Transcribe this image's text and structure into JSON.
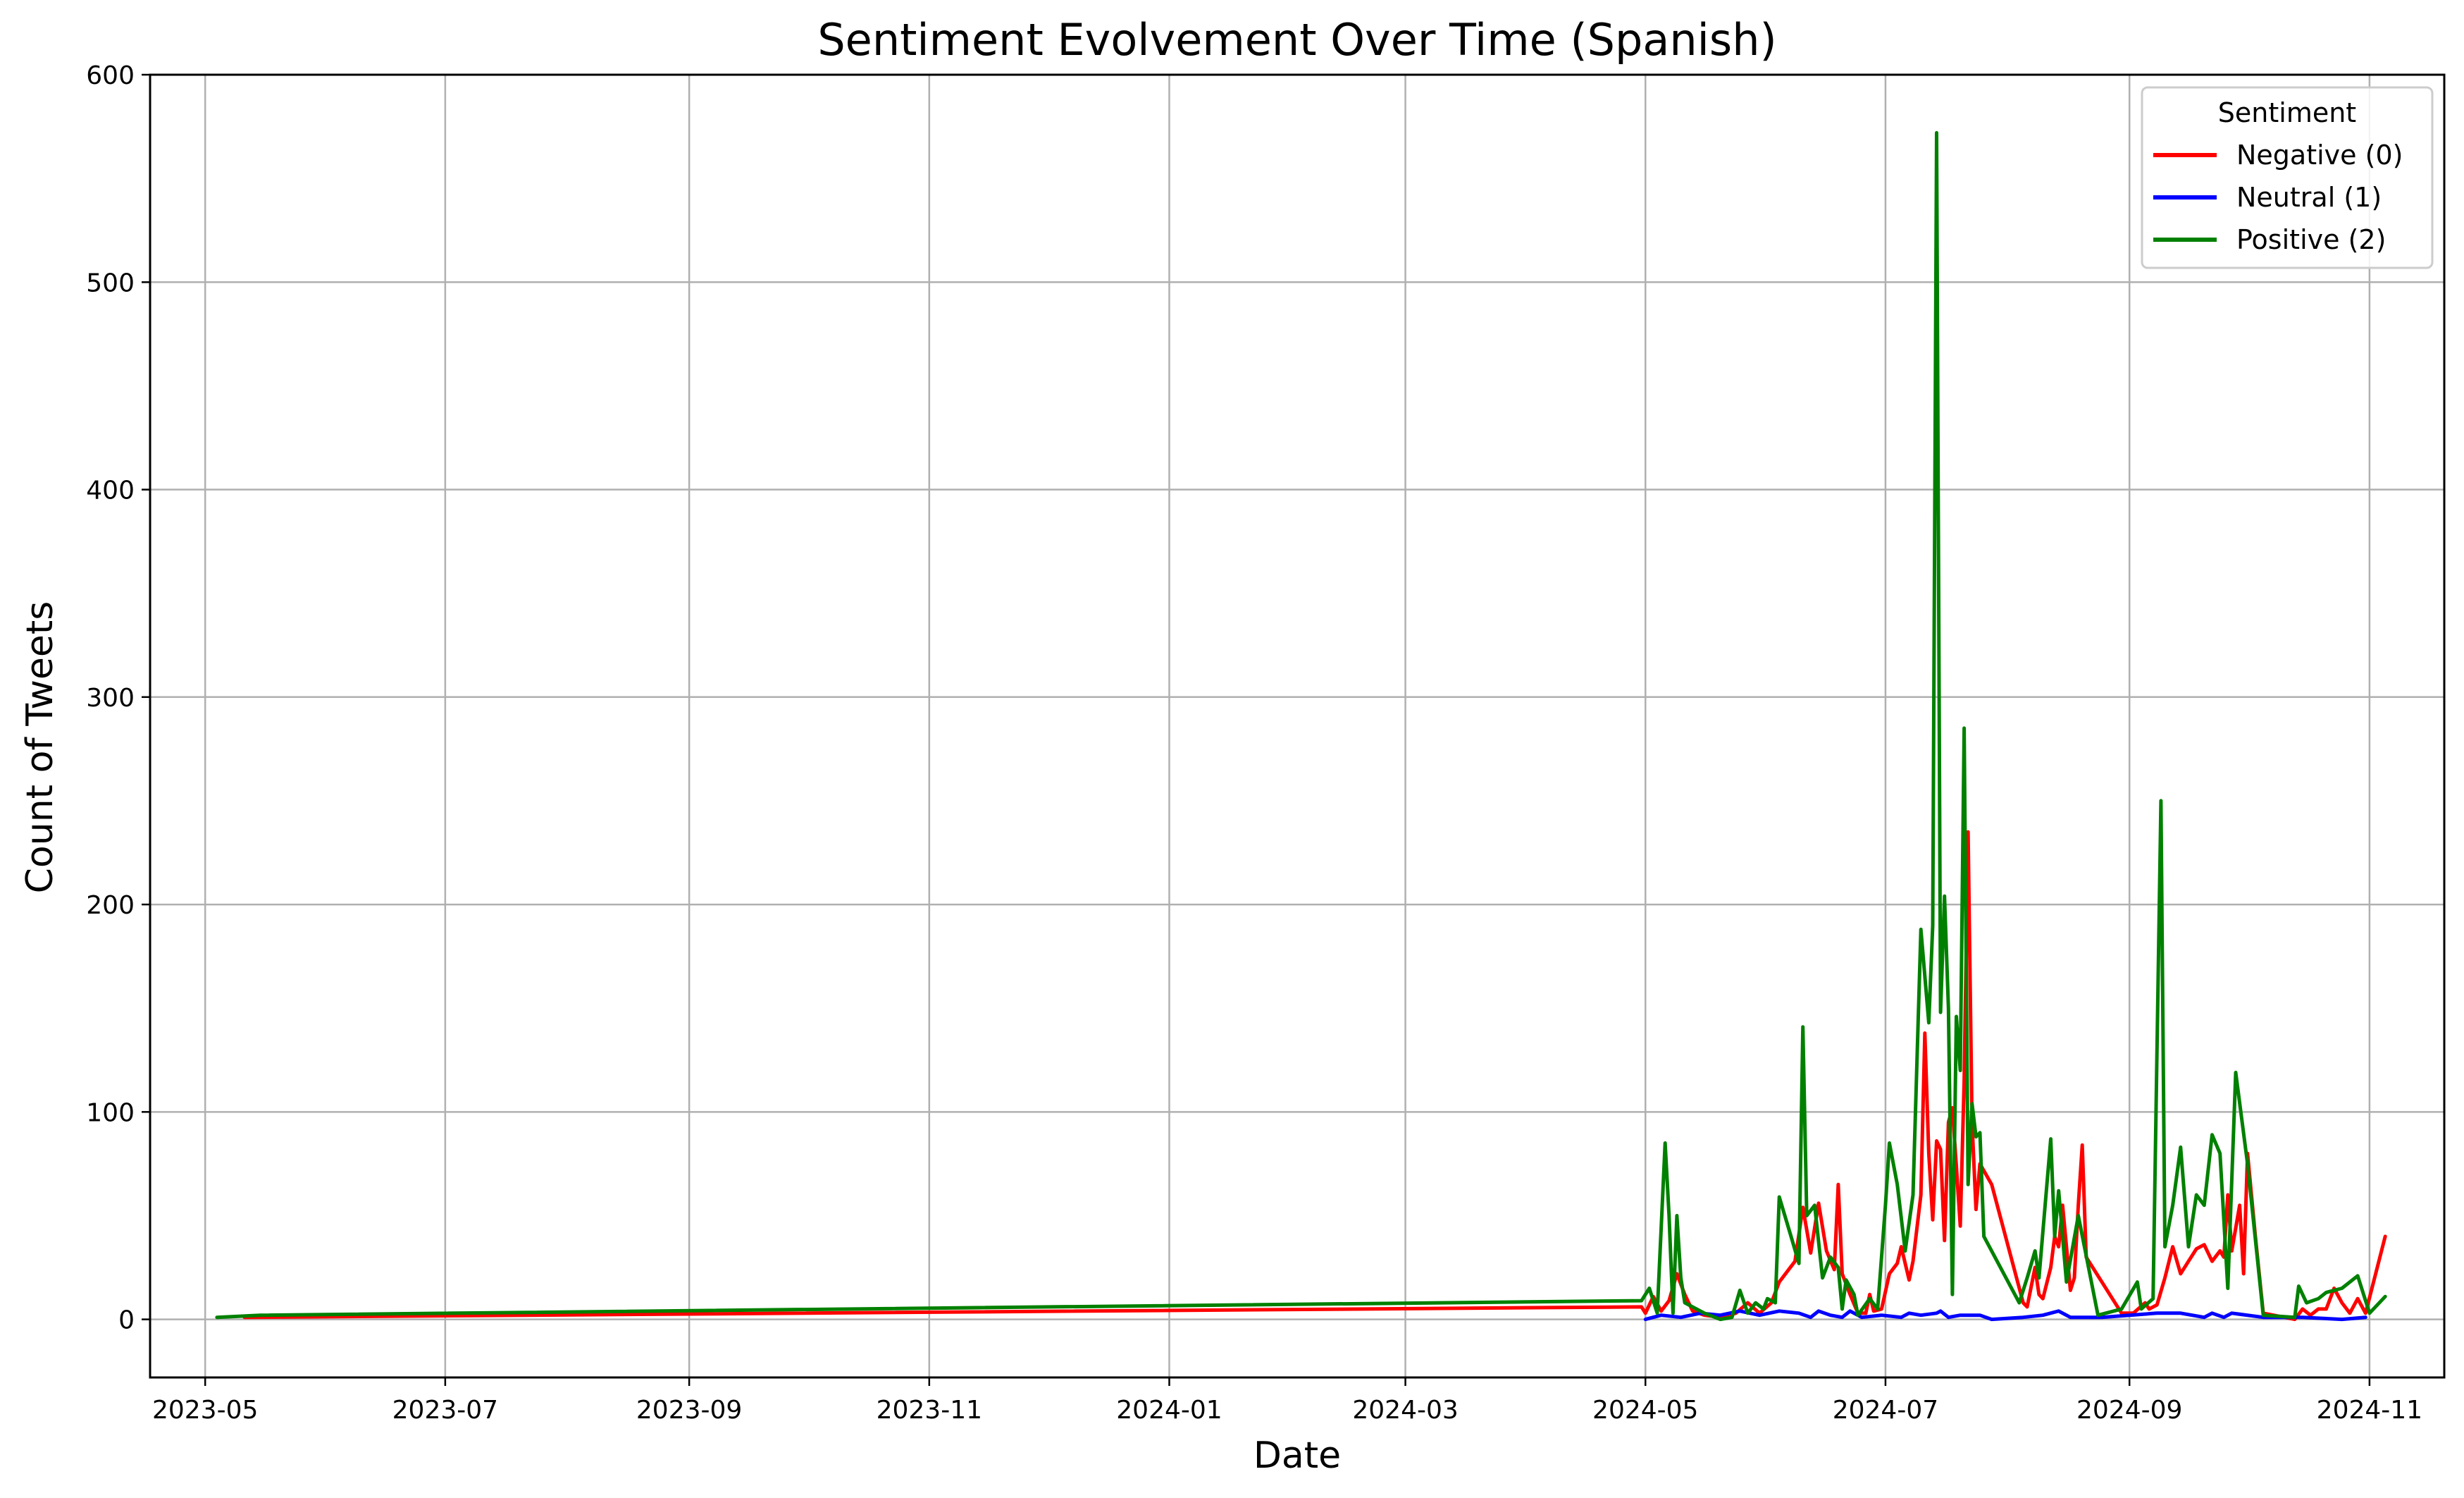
{
  "chart_data": {
    "type": "line",
    "title": "Sentiment Evolvement Over Time (Spanish)",
    "xlabel": "Date",
    "ylabel": "Count of Tweets",
    "xlim": [
      "2023-04-17",
      "2024-11-20"
    ],
    "ylim": [
      -28,
      600
    ],
    "grid": true,
    "legend": {
      "title": "Sentiment",
      "placement": "top-right"
    },
    "x_ticks": [
      "2023-05",
      "2023-07",
      "2023-09",
      "2023-11",
      "2024-01",
      "2024-03",
      "2024-05",
      "2024-07",
      "2024-09",
      "2024-11"
    ],
    "x_tick_dates": [
      "2023-05-01",
      "2023-07-01",
      "2023-09-01",
      "2023-11-01",
      "2024-01-01",
      "2024-03-01",
      "2024-05-01",
      "2024-07-01",
      "2024-09-01",
      "2024-11-01"
    ],
    "y_ticks": [
      0,
      100,
      200,
      300,
      400,
      500,
      600
    ],
    "series": [
      {
        "name": "Negative (0)",
        "color": "#ff0000",
        "points": [
          [
            "2023-05-11",
            1
          ],
          [
            "2024-04-30",
            6
          ],
          [
            "2024-05-01",
            3
          ],
          [
            "2024-05-03",
            11
          ],
          [
            "2024-05-05",
            4
          ],
          [
            "2024-05-07",
            9
          ],
          [
            "2024-05-09",
            22
          ],
          [
            "2024-05-11",
            12
          ],
          [
            "2024-05-13",
            4
          ],
          [
            "2024-05-16",
            2
          ],
          [
            "2024-05-20",
            1
          ],
          [
            "2024-05-24",
            3
          ],
          [
            "2024-05-27",
            8
          ],
          [
            "2024-05-30",
            3
          ],
          [
            "2024-06-02",
            8
          ],
          [
            "2024-06-04",
            18
          ],
          [
            "2024-06-08",
            28
          ],
          [
            "2024-06-10",
            54
          ],
          [
            "2024-06-12",
            32
          ],
          [
            "2024-06-14",
            56
          ],
          [
            "2024-06-16",
            33
          ],
          [
            "2024-06-18",
            24
          ],
          [
            "2024-06-19",
            65
          ],
          [
            "2024-06-20",
            22
          ],
          [
            "2024-06-22",
            12
          ],
          [
            "2024-06-24",
            3
          ],
          [
            "2024-06-26",
            3
          ],
          [
            "2024-06-27",
            12
          ],
          [
            "2024-06-28",
            4
          ],
          [
            "2024-06-30",
            5
          ],
          [
            "2024-07-02",
            22
          ],
          [
            "2024-07-04",
            27
          ],
          [
            "2024-07-05",
            35
          ],
          [
            "2024-07-07",
            19
          ],
          [
            "2024-07-08",
            28
          ],
          [
            "2024-07-10",
            60
          ],
          [
            "2024-07-11",
            138
          ],
          [
            "2024-07-12",
            80
          ],
          [
            "2024-07-13",
            48
          ],
          [
            "2024-07-14",
            86
          ],
          [
            "2024-07-15",
            82
          ],
          [
            "2024-07-16",
            38
          ],
          [
            "2024-07-17",
            95
          ],
          [
            "2024-07-18",
            102
          ],
          [
            "2024-07-19",
            74
          ],
          [
            "2024-07-20",
            45
          ],
          [
            "2024-07-21",
            115
          ],
          [
            "2024-07-22",
            235
          ],
          [
            "2024-07-23",
            95
          ],
          [
            "2024-07-24",
            53
          ],
          [
            "2024-07-25",
            75
          ],
          [
            "2024-07-28",
            65
          ],
          [
            "2024-08-05",
            8
          ],
          [
            "2024-08-06",
            6
          ],
          [
            "2024-08-08",
            25
          ],
          [
            "2024-08-09",
            12
          ],
          [
            "2024-08-10",
            10
          ],
          [
            "2024-08-12",
            25
          ],
          [
            "2024-08-13",
            40
          ],
          [
            "2024-08-14",
            35
          ],
          [
            "2024-08-15",
            55
          ],
          [
            "2024-08-16",
            35
          ],
          [
            "2024-08-17",
            14
          ],
          [
            "2024-08-18",
            20
          ],
          [
            "2024-08-19",
            55
          ],
          [
            "2024-08-20",
            84
          ],
          [
            "2024-08-21",
            30
          ],
          [
            "2024-08-30",
            3
          ],
          [
            "2024-09-02",
            3
          ],
          [
            "2024-09-05",
            8
          ],
          [
            "2024-09-06",
            5
          ],
          [
            "2024-09-08",
            7
          ],
          [
            "2024-09-10",
            20
          ],
          [
            "2024-09-12",
            35
          ],
          [
            "2024-09-14",
            22
          ],
          [
            "2024-09-16",
            28
          ],
          [
            "2024-09-18",
            34
          ],
          [
            "2024-09-20",
            36
          ],
          [
            "2024-09-22",
            28
          ],
          [
            "2024-09-24",
            33
          ],
          [
            "2024-09-25",
            30
          ],
          [
            "2024-09-26",
            60
          ],
          [
            "2024-09-27",
            33
          ],
          [
            "2024-09-29",
            55
          ],
          [
            "2024-09-30",
            22
          ],
          [
            "2024-10-01",
            80
          ],
          [
            "2024-10-03",
            40
          ],
          [
            "2024-10-05",
            3
          ],
          [
            "2024-10-13",
            0
          ],
          [
            "2024-10-15",
            5
          ],
          [
            "2024-10-17",
            2
          ],
          [
            "2024-10-19",
            5
          ],
          [
            "2024-10-21",
            5
          ],
          [
            "2024-10-23",
            15
          ],
          [
            "2024-10-25",
            8
          ],
          [
            "2024-10-27",
            3
          ],
          [
            "2024-10-29",
            10
          ],
          [
            "2024-10-31",
            3
          ],
          [
            "2024-11-05",
            40
          ]
        ]
      },
      {
        "name": "Neutral (1)",
        "color": "#0000ff",
        "points": [
          [
            "2024-05-01",
            0
          ],
          [
            "2024-05-05",
            2
          ],
          [
            "2024-05-10",
            1
          ],
          [
            "2024-05-15",
            3
          ],
          [
            "2024-05-20",
            2
          ],
          [
            "2024-05-25",
            4
          ],
          [
            "2024-05-30",
            2
          ],
          [
            "2024-06-04",
            4
          ],
          [
            "2024-06-09",
            3
          ],
          [
            "2024-06-12",
            1
          ],
          [
            "2024-06-14",
            4
          ],
          [
            "2024-06-17",
            2
          ],
          [
            "2024-06-20",
            1
          ],
          [
            "2024-06-22",
            4
          ],
          [
            "2024-06-25",
            1
          ],
          [
            "2024-06-30",
            2
          ],
          [
            "2024-07-05",
            1
          ],
          [
            "2024-07-07",
            3
          ],
          [
            "2024-07-10",
            2
          ],
          [
            "2024-07-14",
            3
          ],
          [
            "2024-07-15",
            4
          ],
          [
            "2024-07-17",
            1
          ],
          [
            "2024-07-20",
            2
          ],
          [
            "2024-07-25",
            2
          ],
          [
            "2024-07-28",
            0
          ],
          [
            "2024-08-05",
            1
          ],
          [
            "2024-08-10",
            2
          ],
          [
            "2024-08-14",
            4
          ],
          [
            "2024-08-17",
            1
          ],
          [
            "2024-08-25",
            1
          ],
          [
            "2024-09-01",
            2
          ],
          [
            "2024-09-08",
            3
          ],
          [
            "2024-09-14",
            3
          ],
          [
            "2024-09-20",
            1
          ],
          [
            "2024-09-22",
            3
          ],
          [
            "2024-09-25",
            1
          ],
          [
            "2024-09-27",
            3
          ],
          [
            "2024-10-05",
            1
          ],
          [
            "2024-10-15",
            1
          ],
          [
            "2024-10-25",
            0
          ],
          [
            "2024-10-31",
            1
          ]
        ]
      },
      {
        "name": "Positive (2)",
        "color": "#008000",
        "points": [
          [
            "2023-05-04",
            1
          ],
          [
            "2023-05-15",
            2
          ],
          [
            "2024-04-30",
            9
          ],
          [
            "2024-05-02",
            15
          ],
          [
            "2024-05-04",
            3
          ],
          [
            "2024-05-06",
            85
          ],
          [
            "2024-05-07",
            50
          ],
          [
            "2024-05-08",
            3
          ],
          [
            "2024-05-09",
            50
          ],
          [
            "2024-05-10",
            20
          ],
          [
            "2024-05-11",
            8
          ],
          [
            "2024-05-16",
            3
          ],
          [
            "2024-05-20",
            0
          ],
          [
            "2024-05-23",
            1
          ],
          [
            "2024-05-25",
            14
          ],
          [
            "2024-05-27",
            3
          ],
          [
            "2024-05-29",
            8
          ],
          [
            "2024-05-31",
            5
          ],
          [
            "2024-06-01",
            10
          ],
          [
            "2024-06-03",
            8
          ],
          [
            "2024-06-04",
            59
          ],
          [
            "2024-06-07",
            40
          ],
          [
            "2024-06-09",
            27
          ],
          [
            "2024-06-10",
            141
          ],
          [
            "2024-06-11",
            50
          ],
          [
            "2024-06-13",
            55
          ],
          [
            "2024-06-15",
            20
          ],
          [
            "2024-06-17",
            30
          ],
          [
            "2024-06-19",
            25
          ],
          [
            "2024-06-20",
            5
          ],
          [
            "2024-06-21",
            19
          ],
          [
            "2024-06-23",
            12
          ],
          [
            "2024-06-24",
            2
          ],
          [
            "2024-06-27",
            10
          ],
          [
            "2024-06-29",
            5
          ],
          [
            "2024-07-01",
            55
          ],
          [
            "2024-07-02",
            85
          ],
          [
            "2024-07-04",
            65
          ],
          [
            "2024-07-06",
            33
          ],
          [
            "2024-07-08",
            60
          ],
          [
            "2024-07-10",
            188
          ],
          [
            "2024-07-12",
            143
          ],
          [
            "2024-07-13",
            190
          ],
          [
            "2024-07-14",
            572
          ],
          [
            "2024-07-15",
            148
          ],
          [
            "2024-07-16",
            204
          ],
          [
            "2024-07-17",
            150
          ],
          [
            "2024-07-18",
            12
          ],
          [
            "2024-07-19",
            146
          ],
          [
            "2024-07-20",
            120
          ],
          [
            "2024-07-21",
            285
          ],
          [
            "2024-07-22",
            65
          ],
          [
            "2024-07-23",
            104
          ],
          [
            "2024-07-24",
            88
          ],
          [
            "2024-07-25",
            90
          ],
          [
            "2024-07-26",
            40
          ],
          [
            "2024-08-04",
            8
          ],
          [
            "2024-08-06",
            20
          ],
          [
            "2024-08-08",
            33
          ],
          [
            "2024-08-09",
            20
          ],
          [
            "2024-08-12",
            87
          ],
          [
            "2024-08-13",
            40
          ],
          [
            "2024-08-14",
            62
          ],
          [
            "2024-08-16",
            18
          ],
          [
            "2024-08-19",
            50
          ],
          [
            "2024-08-24",
            2
          ],
          [
            "2024-08-30",
            5
          ],
          [
            "2024-09-03",
            18
          ],
          [
            "2024-09-04",
            5
          ],
          [
            "2024-09-07",
            10
          ],
          [
            "2024-09-09",
            250
          ],
          [
            "2024-09-10",
            35
          ],
          [
            "2024-09-12",
            55
          ],
          [
            "2024-09-14",
            83
          ],
          [
            "2024-09-16",
            35
          ],
          [
            "2024-09-18",
            60
          ],
          [
            "2024-09-20",
            55
          ],
          [
            "2024-09-22",
            89
          ],
          [
            "2024-09-24",
            80
          ],
          [
            "2024-09-26",
            15
          ],
          [
            "2024-09-28",
            119
          ],
          [
            "2024-10-01",
            75
          ],
          [
            "2024-10-05",
            2
          ],
          [
            "2024-10-13",
            1
          ],
          [
            "2024-10-14",
            16
          ],
          [
            "2024-10-16",
            8
          ],
          [
            "2024-10-19",
            10
          ],
          [
            "2024-10-21",
            13
          ],
          [
            "2024-10-25",
            15
          ],
          [
            "2024-10-29",
            21
          ],
          [
            "2024-11-01",
            3
          ],
          [
            "2024-11-05",
            11
          ]
        ]
      }
    ]
  }
}
